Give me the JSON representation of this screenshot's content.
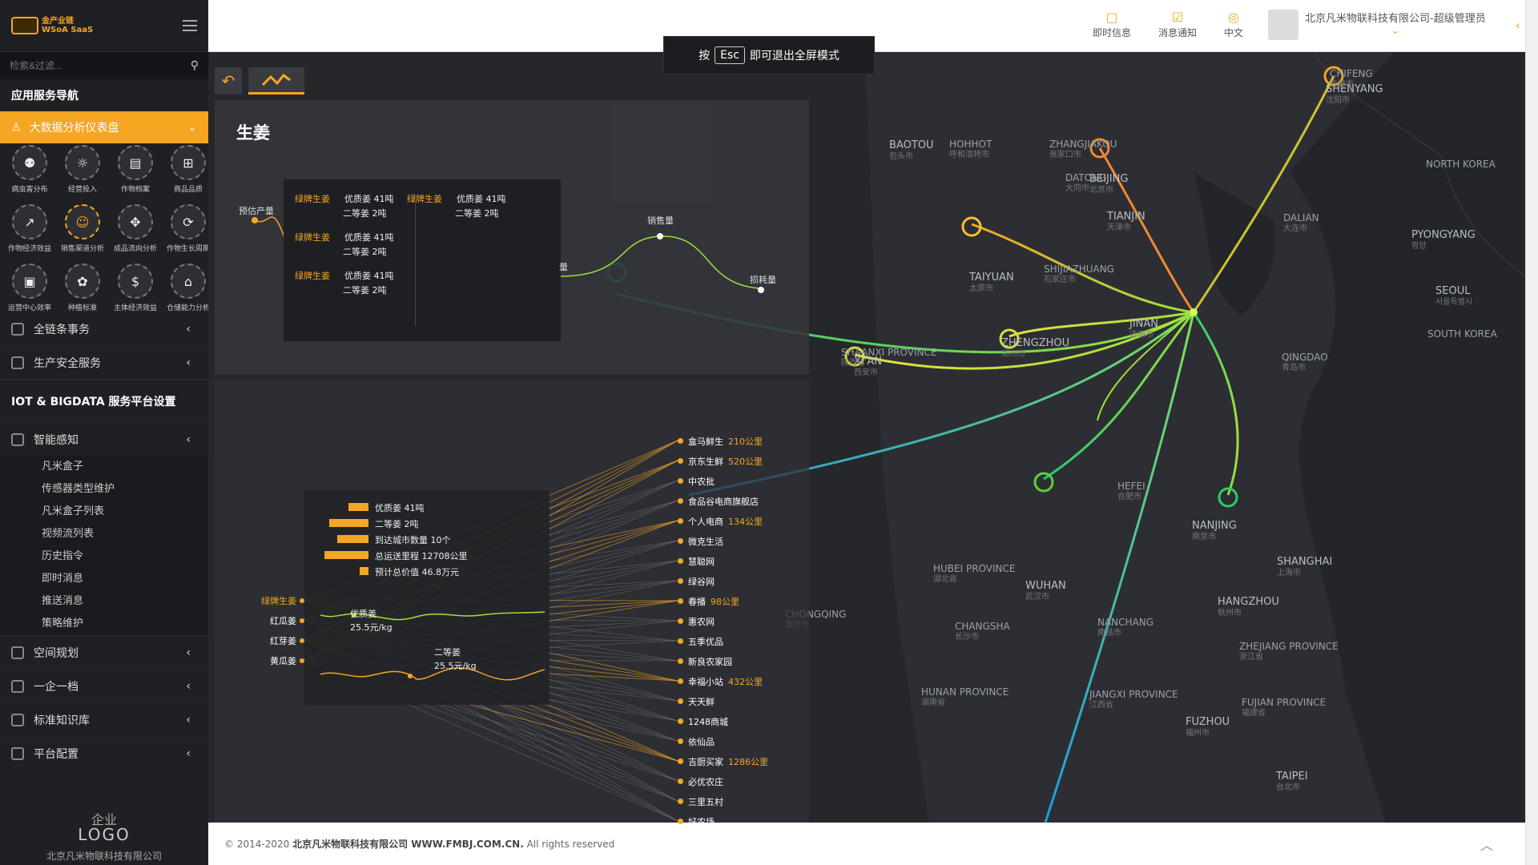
{
  "sidebar": {
    "logo_line1": "金产业链",
    "logo_line2": "WSoA SaaS",
    "search_placeholder": "检索&过滤...",
    "nav_header": "应用服务导航",
    "active_item": "大数据分析仪表盘",
    "grid_items": [
      {
        "label": "病虫害分布",
        "icon": "bug-icon",
        "glyph": "⚉"
      },
      {
        "label": "经营投入",
        "icon": "money-icon",
        "glyph": "☼"
      },
      {
        "label": "作物档案",
        "icon": "archive-icon",
        "glyph": "▤"
      },
      {
        "label": "商品品质",
        "icon": "basket-icon",
        "glyph": "⊞"
      },
      {
        "label": "作物经济效益",
        "icon": "growth-icon",
        "glyph": "↗"
      },
      {
        "label": "销售渠道分析",
        "icon": "people-icon",
        "glyph": "☺"
      },
      {
        "label": "成品流向分析",
        "icon": "flow-icon",
        "glyph": "✥"
      },
      {
        "label": "作物生长周期",
        "icon": "cycle-icon",
        "glyph": "⟳"
      },
      {
        "label": "运营中心效率",
        "icon": "monitor-icon",
        "glyph": "▣"
      },
      {
        "label": "种植标准",
        "icon": "standard-icon",
        "glyph": "✿"
      },
      {
        "label": "主体经济效益",
        "icon": "coin-icon",
        "glyph": "$"
      },
      {
        "label": "仓储能力分析",
        "icon": "warehouse-icon",
        "glyph": "⌂"
      }
    ],
    "nav_items": [
      {
        "label": "全链条事务",
        "icon": "chain-icon"
      },
      {
        "label": "生产安全服务",
        "icon": "safety-icon"
      }
    ],
    "section_title": "IOT & BIGDATA 服务平台设置",
    "smart_sense": "智能感知",
    "sub_items": [
      "凡米盒子",
      "传感器类型维护",
      "凡米盒子列表",
      "视频流列表",
      "历史指令",
      "即时消息",
      "推送消息",
      "策略维护"
    ],
    "nav_items2": [
      {
        "label": "空间规划",
        "icon": "space-icon"
      },
      {
        "label": "一企一档",
        "icon": "file-icon"
      },
      {
        "label": "标准知识库",
        "icon": "library-icon"
      },
      {
        "label": "平台配置",
        "icon": "config-icon"
      }
    ],
    "footer_logo_top": "企业",
    "footer_logo": "LOGO",
    "footer_company": "北京凡米物联科技有限公司"
  },
  "topbar": {
    "im": "即时信息",
    "notify": "消息通知",
    "lang": "中文",
    "user": "北京凡米物联科技有限公司-超级管理员"
  },
  "esc": {
    "pre": "按",
    "key": "Esc",
    "post": "即可退出全屏模式"
  },
  "panel": {
    "title": "生姜",
    "curve_labels": {
      "forecast": "预估产量",
      "sales": "销售量",
      "loss": "损耗量",
      "yield": "量"
    },
    "box_rows": [
      {
        "name": "绿牌生姜",
        "l1": "优质姜 41吨",
        "l2": "二等姜 2吨"
      },
      {
        "name": "绿牌生姜",
        "l1": "优质姜 41吨",
        "l2": "二等姜 2吨"
      },
      {
        "name": "绿牌生姜",
        "l1": "优质姜 41吨",
        "l2": "二等姜 2吨"
      },
      {
        "name": "绿牌生姜",
        "l1": "优质姜 41吨",
        "l2": "二等姜 2吨"
      }
    ]
  },
  "origins": [
    "绿牌生姜",
    "红瓜姜",
    "红芽姜",
    "黄瓜姜"
  ],
  "stats": [
    {
      "label": "优质姜 41吨",
      "frac": 0.35
    },
    {
      "label": "二等姜 2吨",
      "frac": 0.7
    },
    {
      "label": "到达城市数量 10个",
      "frac": 0.55
    },
    {
      "label": "总运送里程 12708公里",
      "frac": 0.78
    },
    {
      "label": "预计总价值 46.8万元",
      "frac": 0.15
    }
  ],
  "prices": [
    {
      "name": "优质姜",
      "value": "25.5元/kg"
    },
    {
      "name": "二等姜",
      "value": "25.5元/kg"
    }
  ],
  "destinations": [
    {
      "name": "盒马鲜生",
      "dist": "210公里"
    },
    {
      "name": "京东生鲜",
      "dist": "520公里"
    },
    {
      "name": "中农批",
      "dist": ""
    },
    {
      "name": "食品谷电商旗舰店",
      "dist": ""
    },
    {
      "name": "个人电商",
      "dist": "134公里"
    },
    {
      "name": "微克生活",
      "dist": ""
    },
    {
      "name": "慧聪网",
      "dist": ""
    },
    {
      "name": "绿谷网",
      "dist": ""
    },
    {
      "name": "春播",
      "dist": "98公里"
    },
    {
      "name": "惠农网",
      "dist": ""
    },
    {
      "name": "五季优品",
      "dist": ""
    },
    {
      "name": "新良农家园",
      "dist": ""
    },
    {
      "name": "幸福小站",
      "dist": "432公里"
    },
    {
      "name": "天天鲜",
      "dist": ""
    },
    {
      "name": "1248商城",
      "dist": ""
    },
    {
      "name": "依仙品",
      "dist": ""
    },
    {
      "name": "吉厨买家",
      "dist": "1286公里"
    },
    {
      "name": "必优农庄",
      "dist": ""
    },
    {
      "name": "三里五村",
      "dist": ""
    },
    {
      "name": "好农场",
      "dist": ""
    }
  ],
  "cities": [
    {
      "en": "SHENYANG",
      "cn": "沈阳市",
      "big": true
    },
    {
      "en": "BEIJING",
      "cn": "北京市",
      "big": true
    },
    {
      "en": "TIANJIN",
      "cn": "天津市",
      "big": true
    },
    {
      "en": "TAIYUAN",
      "cn": "太原市",
      "big": true
    },
    {
      "en": "JINAN",
      "cn": "济南市",
      "big": true
    },
    {
      "en": "ZHENGZHOU",
      "cn": "郑州市",
      "big": true
    },
    {
      "en": "XI'AN",
      "cn": "西安市",
      "big": true
    },
    {
      "en": "NANJING",
      "cn": "南京市",
      "big": true
    },
    {
      "en": "SHANGHAI",
      "cn": "上海市",
      "big": true
    },
    {
      "en": "HANGZHOU",
      "cn": "杭州市",
      "big": true
    },
    {
      "en": "WUHAN",
      "cn": "武汉市",
      "big": true
    },
    {
      "en": "FUZHOU",
      "cn": "福州市",
      "big": true
    },
    {
      "en": "TAIPEI",
      "cn": "台北市",
      "big": true
    },
    {
      "en": "PYONGYANG",
      "cn": "평양",
      "big": true
    },
    {
      "en": "SEOUL",
      "cn": "서울특별시",
      "big": true
    },
    {
      "en": "BAOTOU",
      "cn": "包头市",
      "big": true
    },
    {
      "en": "QINGDAO",
      "cn": "青岛市",
      "big": false
    },
    {
      "en": "DALIAN",
      "cn": "大连市",
      "big": false
    },
    {
      "en": "SHIJIAZHUANG",
      "cn": "石家庄市",
      "big": false
    },
    {
      "en": "HEFEI",
      "cn": "合肥市",
      "big": false
    },
    {
      "en": "NANCHANG",
      "cn": "南昌市",
      "big": false
    },
    {
      "en": "CHANGSHA",
      "cn": "长沙市",
      "big": false
    },
    {
      "en": "HOHHOT",
      "cn": "呼和浩特市",
      "big": false
    },
    {
      "en": "ZHANGJIAKOU",
      "cn": "张家口市",
      "big": false
    },
    {
      "en": "DATONG",
      "cn": "大同市",
      "big": false
    },
    {
      "en": "CHIFENG",
      "cn": "赤峰市",
      "big": false
    },
    {
      "en": "NORTH KOREA",
      "cn": "",
      "big": false
    },
    {
      "en": "SOUTH KOREA",
      "cn": "",
      "big": false
    },
    {
      "en": "SHAANXI PROVINCE",
      "cn": "陕西省",
      "big": false
    },
    {
      "en": "HUBEI PROVINCE",
      "cn": "湖北省",
      "big": false
    },
    {
      "en": "JIANGXI PROVINCE",
      "cn": "江西省",
      "big": false
    },
    {
      "en": "HUNAN PROVINCE",
      "cn": "湖南省",
      "big": false
    },
    {
      "en": "FUJIAN PROVINCE",
      "cn": "福建省",
      "big": false
    },
    {
      "en": "ZHEJIANG PROVINCE",
      "cn": "浙江省",
      "big": false
    },
    {
      "en": "CHONGQING",
      "cn": "重庆市",
      "big": false
    }
  ],
  "footer": {
    "copy": "© 2014-2020",
    "company": "北京凡米物联科技有限公司 WWW.FMBJ.COM.CN.",
    "rights": "All rights reserved"
  }
}
